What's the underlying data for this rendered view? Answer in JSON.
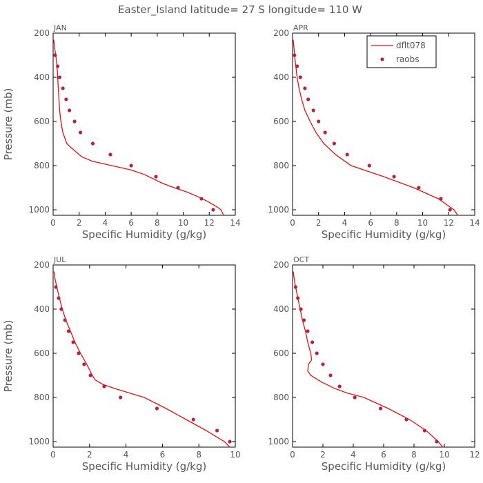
{
  "figure": {
    "title": "Easter_Island  latitude= 27 S longitude= 110 W"
  },
  "legend": {
    "model_label": "dflt078",
    "obs_label": "raobs",
    "colors": {
      "model": "#dd1111",
      "obs": "#b0244a"
    }
  },
  "chart_data": [
    {
      "type": "line",
      "title": "JAN",
      "xlabel": "Specific Humidity (g/kg)",
      "ylabel": "Pressure (mb)",
      "xlim": [
        0,
        14
      ],
      "ylim": [
        1025,
        200
      ],
      "xticks": [
        0,
        2,
        4,
        6,
        8,
        10,
        12,
        14
      ],
      "yticks": [
        200,
        400,
        600,
        800,
        1000
      ],
      "model": {
        "name": "dflt078",
        "p": [
          230,
          260,
          300,
          350,
          400,
          450,
          500,
          550,
          600,
          650,
          700,
          720,
          740,
          760,
          780,
          800,
          820,
          840,
          860,
          880,
          900,
          920,
          940,
          960,
          980,
          1000,
          1025
        ],
        "q": [
          0.05,
          0.1,
          0.2,
          0.3,
          0.35,
          0.4,
          0.45,
          0.5,
          0.6,
          0.75,
          1.05,
          1.4,
          1.8,
          2.2,
          3.0,
          4.5,
          6.0,
          7.0,
          7.7,
          8.4,
          9.3,
          10.3,
          11.1,
          11.8,
          12.4,
          12.9,
          13.1
        ]
      },
      "obs": {
        "name": "raobs",
        "p": [
          300,
          350,
          400,
          450,
          500,
          550,
          600,
          650,
          700,
          750,
          800,
          850,
          900,
          950,
          1000
        ],
        "q": [
          0.15,
          0.35,
          0.5,
          0.75,
          1.0,
          1.25,
          1.65,
          2.1,
          3.05,
          4.4,
          6.0,
          7.9,
          9.6,
          11.4,
          12.3
        ]
      }
    },
    {
      "type": "line",
      "title": "APR",
      "xlabel": "Specific Humidity (g/kg)",
      "ylabel": "",
      "xlim": [
        0,
        14
      ],
      "ylim": [
        1025,
        200
      ],
      "xticks": [
        0,
        2,
        4,
        6,
        8,
        10,
        12,
        14
      ],
      "yticks": [
        200,
        400,
        600,
        800,
        1000
      ],
      "model": {
        "name": "dflt078",
        "p": [
          230,
          260,
          300,
          350,
          400,
          450,
          500,
          550,
          600,
          650,
          700,
          750,
          800,
          850,
          900,
          950,
          1000,
          1025
        ],
        "q": [
          0.05,
          0.1,
          0.15,
          0.25,
          0.35,
          0.5,
          0.7,
          0.95,
          1.35,
          1.8,
          2.4,
          3.3,
          4.5,
          7.0,
          9.3,
          11.2,
          12.4,
          12.7
        ]
      },
      "obs": {
        "name": "raobs",
        "p": [
          300,
          350,
          400,
          450,
          500,
          550,
          600,
          650,
          700,
          750,
          800,
          850,
          900,
          950,
          1000
        ],
        "q": [
          0.15,
          0.35,
          0.6,
          0.95,
          1.2,
          1.6,
          2.0,
          2.5,
          3.2,
          4.2,
          5.9,
          7.8,
          9.7,
          11.4,
          12.1
        ]
      }
    },
    {
      "type": "line",
      "title": "JUL",
      "xlabel": "Specific Humidity (g/kg)",
      "ylabel": "Pressure (mb)",
      "xlim": [
        0,
        10
      ],
      "ylim": [
        1025,
        200
      ],
      "xticks": [
        0,
        2,
        4,
        6,
        8,
        10
      ],
      "yticks": [
        200,
        400,
        600,
        800,
        1000
      ],
      "model": {
        "name": "dflt078",
        "p": [
          230,
          260,
          300,
          350,
          400,
          450,
          500,
          550,
          600,
          650,
          700,
          720,
          740,
          760,
          780,
          800,
          850,
          900,
          950,
          1000,
          1025
        ],
        "q": [
          0.05,
          0.1,
          0.2,
          0.35,
          0.5,
          0.7,
          0.95,
          1.2,
          1.5,
          1.85,
          2.15,
          2.3,
          2.7,
          3.4,
          4.2,
          5.0,
          6.2,
          7.3,
          8.4,
          9.4,
          9.7
        ]
      },
      "obs": {
        "name": "raobs",
        "p": [
          300,
          350,
          400,
          450,
          500,
          550,
          600,
          650,
          700,
          750,
          800,
          850,
          900,
          950,
          1000
        ],
        "q": [
          0.15,
          0.3,
          0.45,
          0.65,
          0.85,
          1.1,
          1.4,
          1.7,
          2.05,
          2.8,
          3.7,
          5.7,
          7.7,
          9.0,
          9.7
        ]
      }
    },
    {
      "type": "line",
      "title": "OCT",
      "xlabel": "Specific Humidity (g/kg)",
      "ylabel": "",
      "xlim": [
        0,
        12
      ],
      "ylim": [
        1025,
        200
      ],
      "xticks": [
        0,
        2,
        4,
        6,
        8,
        10,
        12
      ],
      "yticks": [
        200,
        400,
        600,
        800,
        1000
      ],
      "model": {
        "name": "dflt078",
        "p": [
          230,
          260,
          300,
          350,
          400,
          450,
          500,
          550,
          600,
          630,
          650,
          680,
          700,
          730,
          760,
          780,
          800,
          850,
          900,
          950,
          1000,
          1025
        ],
        "q": [
          0.05,
          0.1,
          0.2,
          0.35,
          0.5,
          0.65,
          0.85,
          1.0,
          1.2,
          1.25,
          1.05,
          1.0,
          1.2,
          1.9,
          2.8,
          3.6,
          4.7,
          6.3,
          7.7,
          8.8,
          9.6,
          9.9
        ]
      },
      "obs": {
        "name": "raobs",
        "p": [
          300,
          350,
          400,
          450,
          500,
          550,
          600,
          650,
          700,
          750,
          800,
          850,
          900,
          950,
          1000
        ],
        "q": [
          0.2,
          0.35,
          0.55,
          0.75,
          1.0,
          1.3,
          1.6,
          2.0,
          2.5,
          3.1,
          4.1,
          5.8,
          7.5,
          8.7,
          9.5
        ]
      }
    }
  ]
}
